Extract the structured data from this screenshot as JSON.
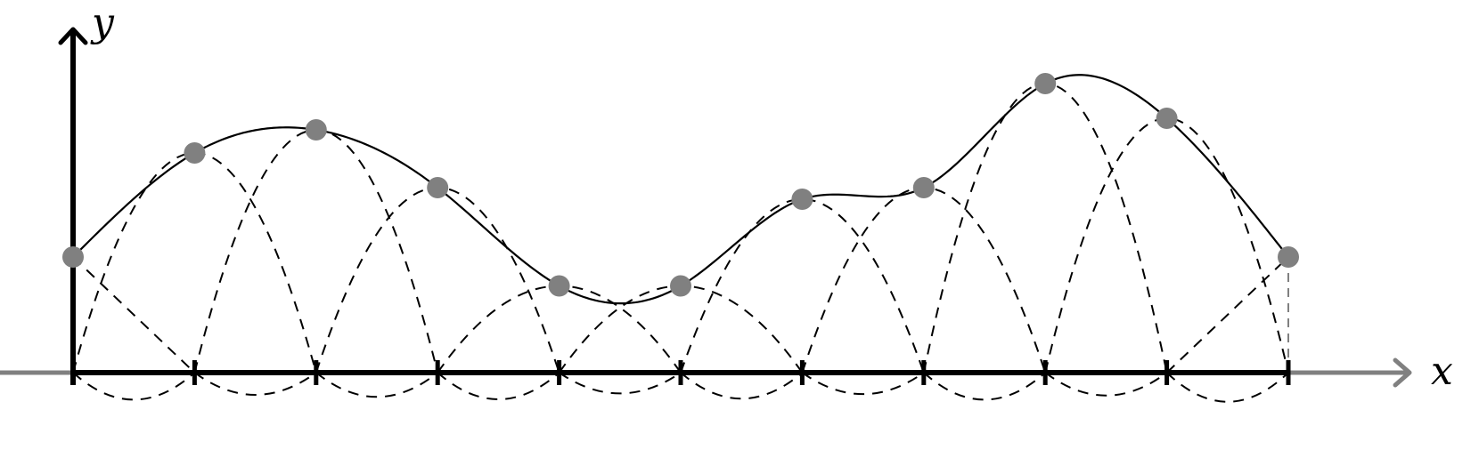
{
  "axes": {
    "x_label": "x",
    "y_label": "y"
  },
  "colors": {
    "curve": "#000000",
    "basis": "#000000",
    "axis_main": "#000000",
    "axis_extension": "#808080",
    "point": "#808080"
  },
  "chart_data": {
    "type": "diagram",
    "description": "",
    "x_nodes": [
      0,
      1,
      2,
      3,
      4,
      5,
      6,
      7,
      8,
      9,
      10
    ],
    "y_values": [
      1.0,
      1.9,
      2.1,
      1.6,
      0.75,
      0.75,
      1.5,
      1.6,
      2.5,
      2.2,
      1.0
    ],
    "y_range": [
      -0.35,
      3.0
    ]
  }
}
